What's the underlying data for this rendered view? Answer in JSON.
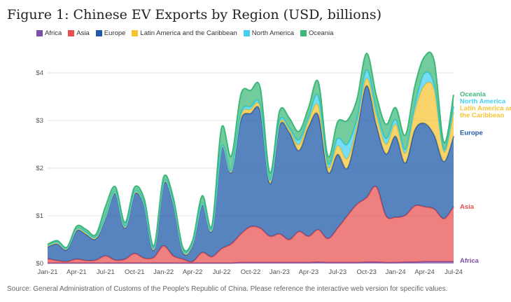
{
  "title": "Figure 1: Chinese EV Exports by Region (USD, billions)",
  "source": "Source: General Administration of Customs of the People's Republic of China. Please reference the interactive web version for specific values.",
  "colors": {
    "Africa": "#7b4fa6",
    "Asia": "#e8504f",
    "Europe": "#1f59a8",
    "Latin America and the Caribbean": "#f5c431",
    "North America": "#43d0f2",
    "Oceania": "#3cb878"
  },
  "end_labels": {
    "Oceania": "Oceania",
    "North America": "North America",
    "Latin America and the Caribbean": "Latin America and the Caribbean",
    "Europe": "Europe",
    "Asia": "Asia",
    "Africa": "Africa"
  },
  "chart_data": {
    "type": "area",
    "stacked": true,
    "title": "Figure 1: Chinese EV Exports by Region (USD, billions)",
    "xlabel": "",
    "ylabel": "",
    "ylim": [
      0,
      4.5
    ],
    "yticks": [
      0,
      1,
      2,
      3,
      4
    ],
    "ytick_labels": [
      "$0",
      "$1",
      "$2",
      "$3",
      "$4"
    ],
    "xtick_labels": [
      "Jan-21",
      "Apr-21",
      "Jul-21",
      "Oct-21",
      "Jan-22",
      "Apr-22",
      "Jul-22",
      "Oct-22",
      "Jan-23",
      "Apr-23",
      "Jul-23",
      "Oct-23",
      "Jan-24",
      "Apr-24",
      "Jul-24"
    ],
    "x": [
      "Jan-21",
      "Feb-21",
      "Mar-21",
      "Apr-21",
      "May-21",
      "Jun-21",
      "Jul-21",
      "Aug-21",
      "Sep-21",
      "Oct-21",
      "Nov-21",
      "Dec-21",
      "Jan-22",
      "Feb-22",
      "Mar-22",
      "Apr-22",
      "May-22",
      "Jun-22",
      "Jul-22",
      "Aug-22",
      "Sep-22",
      "Oct-22",
      "Nov-22",
      "Dec-22",
      "Jan-23",
      "Feb-23",
      "Mar-23",
      "Apr-23",
      "May-23",
      "Jun-23",
      "Jul-23",
      "Aug-23",
      "Sep-23",
      "Oct-23",
      "Nov-23",
      "Dec-23",
      "Jan-24",
      "Feb-24",
      "Mar-24",
      "Apr-24",
      "May-24",
      "Jun-24",
      "Jul-24"
    ],
    "legend_position": "top",
    "series": [
      {
        "name": "Africa",
        "values": [
          0.01,
          0.01,
          0.01,
          0.01,
          0.01,
          0.01,
          0.01,
          0.01,
          0.01,
          0.01,
          0.01,
          0.01,
          0.01,
          0.01,
          0.01,
          0.01,
          0.01,
          0.01,
          0.01,
          0.01,
          0.02,
          0.02,
          0.02,
          0.02,
          0.02,
          0.02,
          0.02,
          0.02,
          0.03,
          0.02,
          0.02,
          0.02,
          0.02,
          0.03,
          0.03,
          0.02,
          0.02,
          0.03,
          0.03,
          0.04,
          0.04,
          0.04,
          0.04
        ]
      },
      {
        "name": "Asia",
        "values": [
          0.09,
          0.05,
          0.03,
          0.08,
          0.05,
          0.06,
          0.15,
          0.06,
          0.08,
          0.2,
          0.1,
          0.12,
          0.36,
          0.15,
          0.08,
          0.03,
          0.22,
          0.13,
          0.3,
          0.4,
          0.6,
          0.75,
          0.72,
          0.55,
          0.6,
          0.48,
          0.65,
          0.55,
          0.68,
          0.5,
          0.72,
          0.98,
          1.22,
          1.35,
          1.58,
          0.98,
          0.95,
          0.98,
          1.18,
          1.15,
          1.1,
          0.9,
          1.15
        ]
      },
      {
        "name": "Europe",
        "values": [
          0.25,
          0.35,
          0.25,
          0.6,
          0.55,
          0.45,
          0.8,
          1.4,
          0.65,
          1.25,
          1.1,
          0.15,
          1.3,
          1.1,
          0.15,
          0.35,
          1.0,
          0.55,
          2.1,
          1.5,
          2.4,
          2.38,
          2.45,
          1.1,
          2.28,
          2.25,
          1.7,
          2.3,
          2.4,
          1.4,
          1.55,
          1.0,
          1.55,
          2.35,
          1.3,
          1.3,
          1.7,
          1.1,
          1.6,
          1.75,
          1.55,
          1.2,
          1.48
        ]
      },
      {
        "name": "Latin America and the Caribbean",
        "values": [
          0.02,
          0.02,
          0.02,
          0.02,
          0.02,
          0.02,
          0.02,
          0.02,
          0.02,
          0.02,
          0.02,
          0.02,
          0.02,
          0.02,
          0.02,
          0.02,
          0.02,
          0.02,
          0.02,
          0.02,
          0.08,
          0.08,
          0.08,
          0.05,
          0.05,
          0.05,
          0.12,
          0.12,
          0.2,
          0.1,
          0.18,
          0.2,
          0.1,
          0.15,
          0.2,
          0.2,
          0.25,
          0.2,
          0.4,
          0.8,
          0.95,
          0.2,
          0.5
        ]
      },
      {
        "name": "North America",
        "values": [
          0.01,
          0.02,
          0.01,
          0.02,
          0.02,
          0.02,
          0.02,
          0.02,
          0.02,
          0.02,
          0.02,
          0.02,
          0.02,
          0.02,
          0.02,
          0.02,
          0.02,
          0.02,
          0.02,
          0.02,
          0.05,
          0.06,
          0.05,
          0.03,
          0.05,
          0.05,
          0.1,
          0.08,
          0.2,
          0.08,
          0.15,
          0.3,
          0.15,
          0.18,
          0.12,
          0.12,
          0.1,
          0.08,
          0.12,
          0.25,
          0.1,
          0.05,
          0.12
        ]
      },
      {
        "name": "Oceania",
        "values": [
          0.02,
          0.03,
          0.02,
          0.05,
          0.06,
          0.05,
          0.2,
          0.1,
          0.08,
          0.1,
          0.1,
          0.05,
          0.1,
          0.08,
          0.05,
          0.05,
          0.15,
          0.06,
          0.4,
          0.3,
          0.4,
          0.34,
          0.36,
          0.15,
          0.2,
          0.2,
          0.18,
          0.2,
          0.3,
          0.15,
          0.35,
          0.5,
          0.4,
          0.35,
          0.3,
          0.3,
          0.25,
          0.3,
          0.4,
          0.35,
          0.5,
          0.15,
          0.25
        ]
      }
    ]
  }
}
